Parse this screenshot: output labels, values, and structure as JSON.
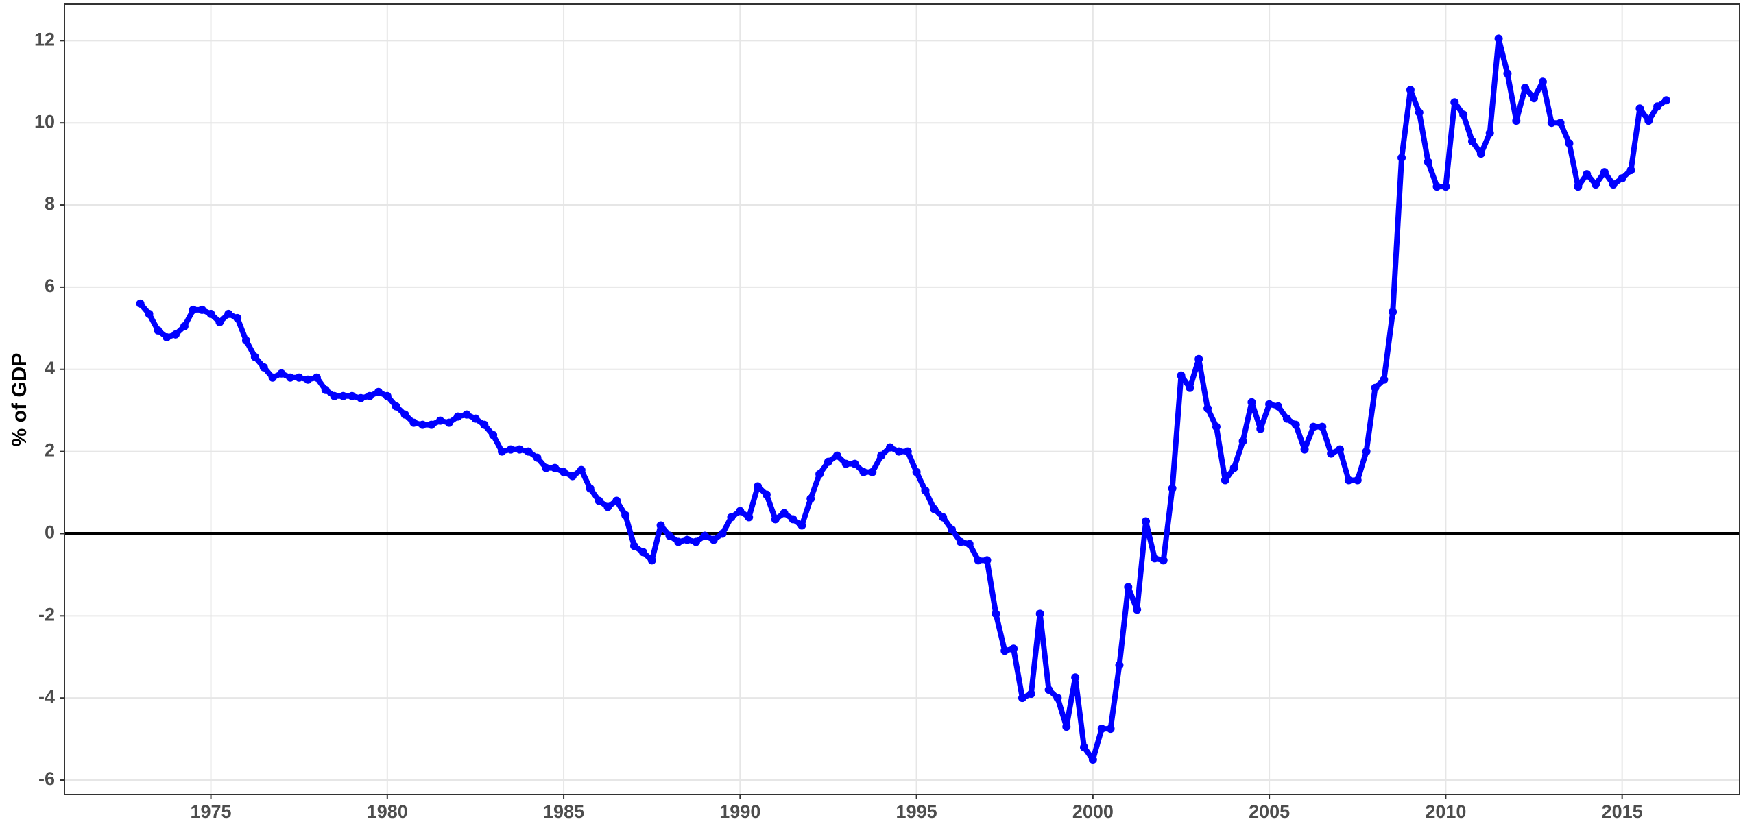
{
  "chart_data": {
    "type": "line",
    "y_label": "% of GDP",
    "x": [
      1973.0,
      1973.25,
      1973.5,
      1973.75,
      1974.0,
      1974.25,
      1974.5,
      1974.75,
      1975.0,
      1975.25,
      1975.5,
      1975.75,
      1976.0,
      1976.25,
      1976.5,
      1976.75,
      1977.0,
      1977.25,
      1977.5,
      1977.75,
      1978.0,
      1978.25,
      1978.5,
      1978.75,
      1979.0,
      1979.25,
      1979.5,
      1979.75,
      1980.0,
      1980.25,
      1980.5,
      1980.75,
      1981.0,
      1981.25,
      1981.5,
      1981.75,
      1982.0,
      1982.25,
      1982.5,
      1982.75,
      1983.0,
      1983.25,
      1983.5,
      1983.75,
      1984.0,
      1984.25,
      1984.5,
      1984.75,
      1985.0,
      1985.25,
      1985.5,
      1985.75,
      1986.0,
      1986.25,
      1986.5,
      1986.75,
      1987.0,
      1987.25,
      1987.5,
      1987.75,
      1988.0,
      1988.25,
      1988.5,
      1988.75,
      1989.0,
      1989.25,
      1989.5,
      1989.75,
      1990.0,
      1990.25,
      1990.5,
      1990.75,
      1991.0,
      1991.25,
      1991.5,
      1991.75,
      1992.0,
      1992.25,
      1992.5,
      1992.75,
      1993.0,
      1993.25,
      1993.5,
      1993.75,
      1994.0,
      1994.25,
      1994.5,
      1994.75,
      1995.0,
      1995.25,
      1995.5,
      1995.75,
      1996.0,
      1996.25,
      1996.5,
      1996.75,
      1997.0,
      1997.25,
      1997.5,
      1997.75,
      1998.0,
      1998.25,
      1998.5,
      1998.75,
      1999.0,
      1999.25,
      1999.5,
      1999.75,
      2000.0,
      2000.25,
      2000.5,
      2000.75,
      2001.0,
      2001.25,
      2001.5,
      2001.75,
      2002.0,
      2002.25,
      2002.5,
      2002.75,
      2003.0,
      2003.25,
      2003.5,
      2003.75,
      2004.0,
      2004.25,
      2004.5,
      2004.75,
      2005.0,
      2005.25,
      2005.5,
      2005.75,
      2006.0,
      2006.25,
      2006.5,
      2006.75,
      2007.0,
      2007.25,
      2007.5,
      2007.75,
      2008.0,
      2008.25,
      2008.5,
      2008.75,
      2009.0,
      2009.25,
      2009.5,
      2009.75,
      2010.0,
      2010.25,
      2010.5,
      2010.75,
      2011.0,
      2011.25,
      2011.5,
      2011.75,
      2012.0,
      2012.25,
      2012.5,
      2012.75,
      2013.0,
      2013.25,
      2013.5,
      2013.75,
      2014.0,
      2014.25,
      2014.5,
      2014.75,
      2015.0,
      2015.25,
      2015.5,
      2015.75,
      2016.0,
      2016.25
    ],
    "series": [
      {
        "color": "#0000ff",
        "values": [
          5.6,
          5.35,
          4.95,
          4.78,
          4.85,
          5.05,
          5.45,
          5.45,
          5.35,
          5.15,
          5.35,
          5.25,
          4.7,
          4.3,
          4.05,
          3.8,
          3.9,
          3.8,
          3.8,
          3.75,
          3.8,
          3.5,
          3.35,
          3.35,
          3.35,
          3.3,
          3.35,
          3.45,
          3.35,
          3.1,
          2.9,
          2.7,
          2.65,
          2.65,
          2.75,
          2.7,
          2.85,
          2.9,
          2.8,
          2.65,
          2.4,
          2.0,
          2.05,
          2.05,
          2.0,
          1.85,
          1.6,
          1.6,
          1.5,
          1.4,
          1.55,
          1.1,
          0.8,
          0.65,
          0.8,
          0.45,
          -0.3,
          -0.45,
          -0.65,
          0.2,
          -0.05,
          -0.2,
          -0.15,
          -0.2,
          -0.05,
          -0.15,
          0.0,
          0.4,
          0.55,
          0.4,
          1.15,
          0.95,
          0.35,
          0.5,
          0.35,
          0.2,
          0.85,
          1.45,
          1.75,
          1.9,
          1.7,
          1.7,
          1.5,
          1.5,
          1.9,
          2.1,
          2.0,
          2.0,
          1.5,
          1.05,
          0.6,
          0.4,
          0.1,
          -0.2,
          -0.25,
          -0.65,
          -0.65,
          -1.95,
          -2.85,
          -2.8,
          -4.0,
          -3.9,
          -1.95,
          -3.8,
          -4.0,
          -4.7,
          -3.5,
          -5.2,
          -5.5,
          -4.75,
          -4.75,
          -3.2,
          -1.3,
          -1.85,
          0.3,
          -0.6,
          -0.65,
          1.1,
          3.85,
          3.55,
          4.25,
          3.05,
          2.6,
          1.3,
          1.6,
          2.25,
          3.2,
          2.55,
          3.15,
          3.1,
          2.8,
          2.65,
          2.05,
          2.6,
          2.6,
          1.95,
          2.05,
          1.3,
          1.3,
          2.0,
          3.55,
          3.75,
          5.4,
          9.15,
          10.8,
          10.25,
          9.05,
          8.45,
          8.45,
          10.5,
          10.2,
          9.55,
          9.25,
          9.75,
          12.05,
          11.2,
          10.05,
          10.85,
          10.6,
          11.0,
          10.0,
          10.0,
          9.5,
          8.45,
          8.75,
          8.5,
          8.8,
          8.5,
          8.65,
          8.85,
          10.35,
          10.05,
          10.4,
          10.55
        ]
      }
    ],
    "xlim": [
      1970.85,
      2018.33
    ],
    "xticks": [
      1975,
      1980,
      1985,
      1990,
      1995,
      2000,
      2005,
      2010,
      2015
    ],
    "ylim": [
      -6.35,
      12.89
    ],
    "yticks": [
      -6,
      -4,
      -2,
      0,
      2,
      4,
      6,
      8,
      10,
      12
    ],
    "grid": true,
    "reference_line": 0
  }
}
